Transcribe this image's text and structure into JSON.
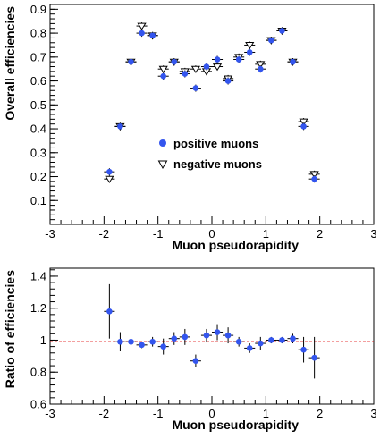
{
  "chart_data": [
    {
      "type": "scatter",
      "xlabel": "Muon pseudorapidity",
      "ylabel": "Overall efficiencies",
      "xlim": [
        -3,
        3
      ],
      "ylim": [
        0,
        0.92
      ],
      "xticks": [
        "-3",
        "-2",
        "-1",
        "0",
        "1",
        "2",
        "3"
      ],
      "yticks": [
        "0.1",
        "0.2",
        "0.3",
        "0.4",
        "0.5",
        "0.6",
        "0.7",
        "0.8",
        "0.9"
      ],
      "grid": false,
      "legend": "center",
      "series": [
        {
          "name": "positive muons",
          "marker": "filled-circle",
          "color": "#3355ee",
          "x": [
            -1.9,
            -1.7,
            -1.5,
            -1.3,
            -1.1,
            -0.9,
            -0.7,
            -0.5,
            -0.3,
            -0.1,
            0.1,
            0.3,
            0.5,
            0.7,
            0.9,
            1.1,
            1.3,
            1.5,
            1.7,
            1.9
          ],
          "y": [
            0.22,
            0.41,
            0.68,
            0.8,
            0.79,
            0.62,
            0.68,
            0.63,
            0.57,
            0.66,
            0.69,
            0.6,
            0.69,
            0.72,
            0.65,
            0.77,
            0.81,
            0.68,
            0.41,
            0.19
          ]
        },
        {
          "name": "negative muons",
          "marker": "open-triangle-down",
          "color": "#000000",
          "x": [
            -1.9,
            -1.7,
            -1.5,
            -1.3,
            -1.1,
            -0.9,
            -0.7,
            -0.5,
            -0.3,
            -0.1,
            0.1,
            0.3,
            0.5,
            0.7,
            0.9,
            1.1,
            1.3,
            1.5,
            1.7,
            1.9
          ],
          "y": [
            0.19,
            0.41,
            0.68,
            0.83,
            0.79,
            0.65,
            0.68,
            0.64,
            0.65,
            0.64,
            0.66,
            0.61,
            0.7,
            0.75,
            0.67,
            0.77,
            0.81,
            0.68,
            0.43,
            0.21
          ]
        }
      ]
    },
    {
      "type": "scatter",
      "xlabel": "Muon pseudorapidity",
      "ylabel": "Ratio of efficiencies",
      "xlim": [
        -3,
        3
      ],
      "ylim": [
        0.6,
        1.45
      ],
      "xticks": [
        "-3",
        "-2",
        "-1",
        "0",
        "1",
        "2",
        "3"
      ],
      "yticks": [
        "0.6",
        "0.8",
        "1",
        "1.2",
        "1.4"
      ],
      "grid": false,
      "reference_line": {
        "y": 0.99,
        "style": "dashed",
        "color": "#e00000"
      },
      "series": [
        {
          "marker": "filled-circle",
          "color": "#3355ee",
          "x": [
            -1.9,
            -1.7,
            -1.5,
            -1.3,
            -1.1,
            -0.9,
            -0.7,
            -0.5,
            -0.3,
            -0.1,
            0.1,
            0.3,
            0.5,
            0.7,
            0.9,
            1.1,
            1.3,
            1.5,
            1.7,
            1.9
          ],
          "y": [
            1.18,
            0.99,
            0.99,
            0.97,
            0.99,
            0.96,
            1.01,
            1.02,
            0.87,
            1.03,
            1.05,
            1.03,
            0.99,
            0.95,
            0.98,
            1.0,
            1.0,
            1.01,
            0.94,
            0.89
          ],
          "err": [
            0.17,
            0.06,
            0.03,
            0.02,
            0.03,
            0.05,
            0.04,
            0.05,
            0.04,
            0.04,
            0.05,
            0.05,
            0.03,
            0.03,
            0.04,
            0.02,
            0.02,
            0.03,
            0.08,
            0.13
          ]
        }
      ]
    }
  ]
}
